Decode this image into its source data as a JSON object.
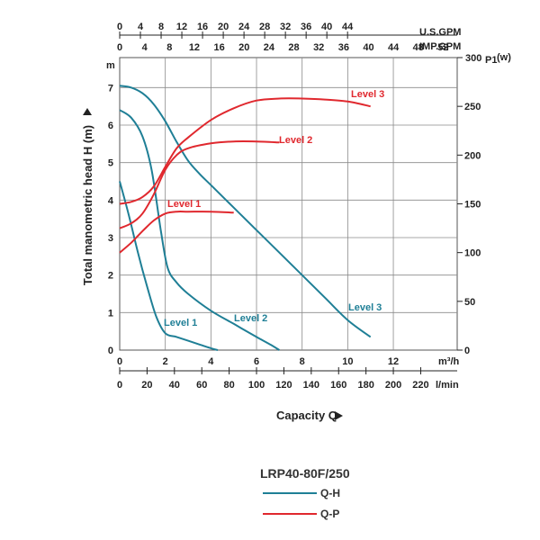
{
  "chart_data": {
    "type": "line",
    "model": "LRP40-80F/250",
    "xlabel": "Capacity Q",
    "ylabel": "Total manometric head H (m)",
    "y_unit": "m",
    "y2_unit": "P1",
    "y2_unit_sub": "(w)",
    "xlim_m3h": [
      0,
      14.8
    ],
    "ylim_m": [
      0,
      7.8
    ],
    "y2lim_w": [
      0,
      300
    ],
    "scales": {
      "m3h": {
        "unit": "m³/h",
        "ticks": [
          "0",
          "2",
          "4",
          "6",
          "8",
          "10",
          "12"
        ],
        "values": [
          0,
          2,
          4,
          6,
          8,
          10,
          12
        ]
      },
      "lmin": {
        "unit": "l/min",
        "ticks": [
          "0",
          "20",
          "40",
          "60",
          "80",
          "100",
          "120",
          "140",
          "160",
          "180",
          "200",
          "220"
        ],
        "values": [
          0,
          20,
          40,
          60,
          80,
          100,
          120,
          140,
          160,
          180,
          200,
          220
        ]
      },
      "usgpm": {
        "unit": "U.S.GPM",
        "ticks": [
          "0",
          "4",
          "8",
          "12",
          "16",
          "20",
          "24",
          "28",
          "32",
          "36",
          "40",
          "44"
        ],
        "values": [
          0,
          4,
          8,
          12,
          16,
          20,
          24,
          28,
          32,
          36,
          40,
          44
        ]
      },
      "impgpm": {
        "unit": "IMP.GPM",
        "ticks": [
          "0",
          "4",
          "8",
          "12",
          "16",
          "20",
          "24",
          "28",
          "32",
          "36",
          "40",
          "44",
          "48",
          "52"
        ],
        "values": [
          0,
          4,
          8,
          12,
          16,
          20,
          24,
          28,
          32,
          36,
          40,
          44,
          48,
          52
        ]
      },
      "head": {
        "ticks": [
          "0",
          "1",
          "2",
          "3",
          "4",
          "5",
          "6",
          "7"
        ],
        "values": [
          0,
          1,
          2,
          3,
          4,
          5,
          6,
          7
        ]
      },
      "power": {
        "ticks": [
          "0",
          "50",
          "100",
          "150",
          "200",
          "250",
          "300"
        ],
        "values": [
          0,
          50,
          100,
          150,
          200,
          250,
          300
        ]
      }
    },
    "legend": [
      {
        "label": "Q-H",
        "color": "#1f7f96"
      },
      {
        "label": "Q-P",
        "color": "#e0282e"
      }
    ],
    "series_qh": [
      {
        "name": "Level 1",
        "color": "#1f7f96",
        "x": [
          0,
          0.4,
          0.8,
          1.2,
          1.6,
          2.0,
          2.5,
          3.0,
          3.5,
          4.0,
          4.3
        ],
        "y": [
          4.5,
          3.6,
          2.6,
          1.7,
          0.9,
          0.45,
          0.35,
          0.25,
          0.15,
          0.05,
          0.0
        ]
      },
      {
        "name": "Level 2",
        "color": "#1f7f96",
        "x": [
          0,
          0.5,
          1.0,
          1.4,
          1.8,
          2.1,
          2.5,
          3.0,
          4.0,
          5.0,
          6.0,
          6.6,
          7.0
        ],
        "y": [
          6.4,
          6.2,
          5.7,
          4.8,
          3.2,
          2.2,
          1.8,
          1.5,
          1.05,
          0.7,
          0.35,
          0.15,
          0.0
        ]
      },
      {
        "name": "Level 3",
        "color": "#1f7f96",
        "x": [
          0,
          0.5,
          1.0,
          1.5,
          2.0,
          2.5,
          3.0,
          3.5,
          4.0,
          5.0,
          6.0,
          7.0,
          8.0,
          9.0,
          10.0,
          11.0
        ],
        "y": [
          7.05,
          7.0,
          6.85,
          6.55,
          6.1,
          5.55,
          5.05,
          4.7,
          4.4,
          3.8,
          3.2,
          2.6,
          2.0,
          1.4,
          0.8,
          0.35
        ]
      }
    ],
    "series_qp": [
      {
        "name": "Level 1",
        "color": "#e0282e",
        "x": [
          0,
          0.5,
          1.0,
          1.5,
          2.0,
          2.5,
          3.0,
          4.0,
          5.0
        ],
        "y": [
          100,
          110,
          122,
          133,
          140,
          142,
          142,
          142,
          141
        ]
      },
      {
        "name": "Level 2",
        "color": "#e0282e",
        "x": [
          0,
          0.5,
          1.0,
          1.5,
          2.0,
          2.5,
          3.0,
          4.0,
          5.0,
          6.0,
          7.0
        ],
        "y": [
          125,
          130,
          140,
          160,
          185,
          200,
          207,
          212,
          214,
          214,
          213
        ]
      },
      {
        "name": "Level 3",
        "color": "#e0282e",
        "x": [
          0,
          0.5,
          1.0,
          1.5,
          2.0,
          2.5,
          3.0,
          4.0,
          5.0,
          6.0,
          7.0,
          8.0,
          9.0,
          10.0,
          11.0
        ],
        "y": [
          150,
          152,
          157,
          168,
          188,
          207,
          218,
          236,
          248,
          256,
          258,
          258,
          257,
          255,
          250
        ]
      }
    ],
    "label_text": {
      "qh1": "Level 1",
      "qh2": "Level 2",
      "qh3": "Level 3",
      "qp1": "Level 1",
      "qp2": "Level 2",
      "qp3": "Level 3"
    },
    "grid": true
  }
}
